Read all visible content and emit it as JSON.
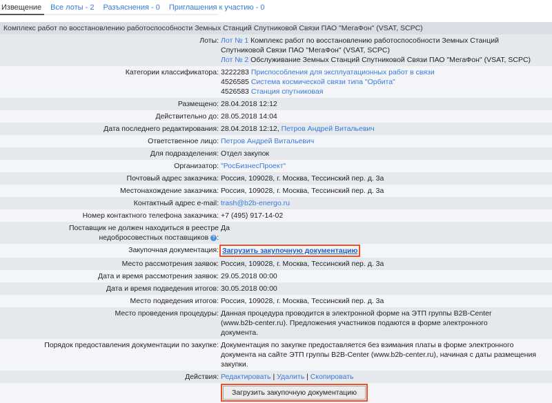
{
  "tabs": [
    {
      "label": "Извещение"
    },
    {
      "label": "Все лоты - 2"
    },
    {
      "label": "Разъяснения - 0"
    },
    {
      "label": "Приглашения к участию - 0"
    }
  ],
  "header": "Комплекс работ по восстановлению работоспособности Земных Станций Спутниковой Связи ПАО \"МегаФон\" (VSAT, SCPC)",
  "lots": {
    "label": "Лоты:",
    "items": [
      {
        "link": "Лот № 1",
        "text": "Комплекс работ по восстановлению работоспособности Земных Станций Спутниковой Связи ПАО \"МегаФон\" (VSAT, SCPC)"
      },
      {
        "link": "Лот № 2",
        "text": "Обслуживание Земных Станций Спутниковой Связи ПАО \"МегаФон\" (VSAT, SCPC)"
      }
    ]
  },
  "categories": {
    "label": "Категории классификатора:",
    "items": [
      {
        "code": "3222283",
        "link": "Приспособления для эксплуатационных работ в связи"
      },
      {
        "code": "4526585",
        "link": "Система космической связи типа \"Орбита\""
      },
      {
        "code": "4526583",
        "link": "Станция спутниковая"
      }
    ]
  },
  "posted": {
    "label": "Размещено:",
    "value": "28.04.2018 12:12"
  },
  "valid": {
    "label": "Действительно до:",
    "value": "28.05.2018 14:04"
  },
  "edited": {
    "label": "Дата последнего редактирования:",
    "value": "28.04.2018 12:12,",
    "link": "Петров Андрей Витальевич"
  },
  "responsible": {
    "label": "Ответственное лицо:",
    "link": "Петров Андрей Витальевич"
  },
  "department": {
    "label": "Для подразделения:",
    "value": "Отдел закупок"
  },
  "organizer": {
    "label": "Организатор:",
    "link": "\"РосБизнесПроект\""
  },
  "postal": {
    "label": "Почтовый адрес заказчика:",
    "value": "Россия, 109028, г. Москва, Тессинский пер. д. 3а"
  },
  "location": {
    "label": "Местонахождение заказчика:",
    "value": "Россия, 109028, г. Москва, Тессинский пер. д. 3а"
  },
  "email": {
    "label": "Контактный адрес e-mail:",
    "link": "trash@b2b-energo.ru"
  },
  "phone": {
    "label": "Номер контактного телефона заказчика:",
    "value": "+7 (495) 917-14-02"
  },
  "registry": {
    "label": "Поставщик не должен находиться в реестре недобросовестных поставщиков",
    "help": "?",
    "value": "Да"
  },
  "docs": {
    "label": "Закупочная документация:",
    "link": "Загрузить закупочную документацию"
  },
  "review_place": {
    "label": "Место рассмотрения заявок:",
    "value": "Россия, 109028, г. Москва, Тессинский пер. д. 3а"
  },
  "review_date": {
    "label": "Дата и время рассмотрения заявок:",
    "value": "29.05.2018 00:00"
  },
  "results_date": {
    "label": "Дата и время подведения итогов:",
    "value": "30.05.2018 00:00"
  },
  "results_place": {
    "label": "Место подведения итогов:",
    "value": "Россия, 109028, г. Москва, Тессинский пер. д. 3а"
  },
  "procedure_place": {
    "label": "Место проведения процедуры:",
    "value": "Данная процедура проводится в электронной форме на ЭТП группы B2B-Center (www.b2b-center.ru). Предложения участников подаются в форме электронного документа."
  },
  "docs_order": {
    "label": "Порядок предоставления документации по закупке:",
    "value": "Документация по закупке предоставляется без взимания платы в форме электронного документа на сайте ЭТП группы B2B-Center (www.b2b-center.ru), начиная с даты размещения закупки."
  },
  "actions": {
    "label": "Действия:",
    "edit": "Редактировать",
    "delete": "Удалить",
    "copy": "Скопировать",
    "sep": "|"
  },
  "upload_button": "Загрузить закупочную документацию",
  "colors": {
    "link": "#3b78d6",
    "highlight": "#f04e23",
    "row_dark": "#e5e9ee",
    "row_light": "#f3f5f8"
  }
}
